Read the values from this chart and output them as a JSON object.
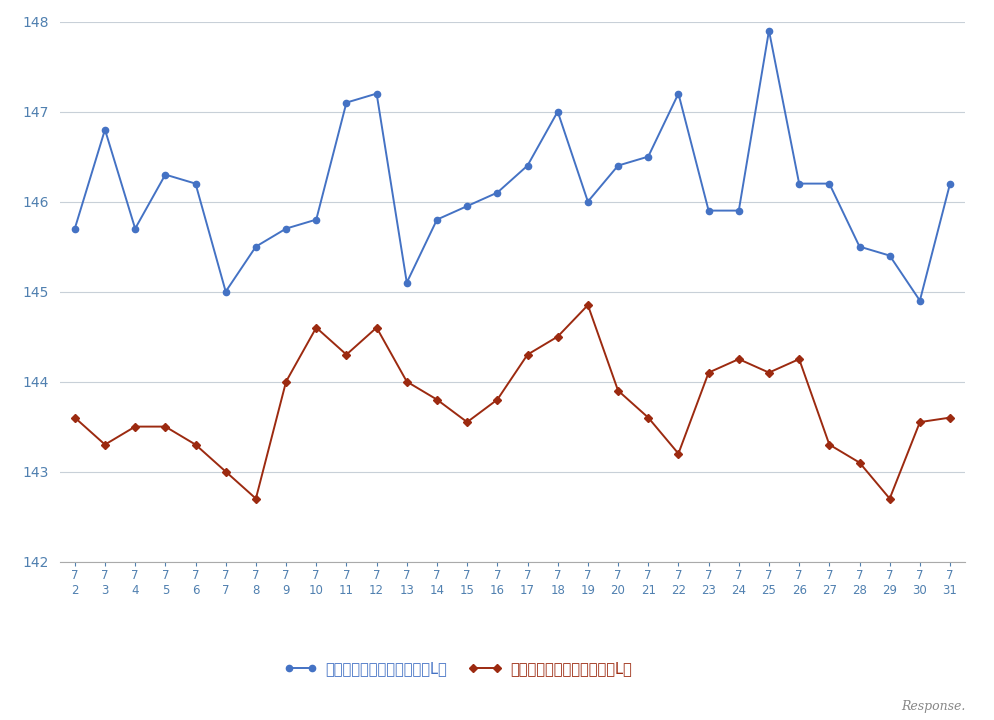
{
  "x_days": [
    2,
    3,
    4,
    5,
    6,
    7,
    8,
    9,
    10,
    11,
    12,
    13,
    14,
    15,
    16,
    17,
    18,
    19,
    20,
    21,
    22,
    23,
    24,
    25,
    26,
    27,
    28,
    29,
    30,
    31
  ],
  "blue_values": [
    145.7,
    146.8,
    145.7,
    146.3,
    146.2,
    145.0,
    145.5,
    145.7,
    145.8,
    147.1,
    147.2,
    145.1,
    145.8,
    145.95,
    146.1,
    146.4,
    147.0,
    146.0,
    146.4,
    146.5,
    147.2,
    145.9,
    145.9,
    147.9,
    146.2,
    146.2,
    145.5,
    145.4,
    144.9,
    146.2
  ],
  "red_values": [
    143.6,
    143.3,
    143.5,
    143.5,
    143.3,
    143.0,
    142.7,
    144.0,
    144.6,
    144.3,
    144.6,
    144.0,
    143.8,
    143.55,
    143.8,
    144.3,
    144.5,
    144.85,
    143.9,
    143.6,
    143.2,
    144.1,
    144.25,
    144.1,
    144.25,
    143.3,
    143.1,
    142.7,
    143.55,
    143.6
  ],
  "blue_color": "#4472C4",
  "red_color": "#9C2A10",
  "ylim": [
    142,
    148
  ],
  "yticks": [
    142,
    143,
    144,
    145,
    146,
    147,
    148
  ],
  "legend_blue": "レギュラー看板価格（円／L）",
  "legend_red": "レギュラー実売価格（円／L）",
  "bg_color": "#ffffff",
  "grid_color": "#c8d0d8",
  "watermark": "Response.",
  "axis_color": "#5080B0",
  "tick_color": "#5080B0"
}
